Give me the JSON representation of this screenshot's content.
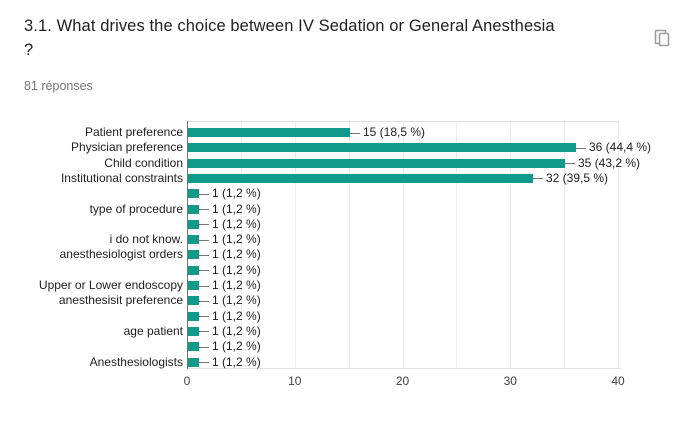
{
  "header": {
    "title_lines": [
      "3.1. What drives the choice between IV Sedation or General Anesthesia",
      "?"
    ],
    "responses_count": "81 réponses"
  },
  "icons": {
    "copy": "content-copy-icon"
  },
  "colors": {
    "bar": "#0f9a8a",
    "axis_line": "#757575",
    "leader_line": "#757575",
    "gridline": "#ececec",
    "plot_border": "#e0e0e0",
    "chart_label": "#212121",
    "tick_label": "#424242",
    "title": "#212121",
    "subtitle": "#757575",
    "icon": "#9e9e9e"
  },
  "chart_data": {
    "type": "bar",
    "orientation": "horizontal",
    "title": "",
    "xlabel": "",
    "ylabel": "",
    "xlim": [
      0,
      40
    ],
    "x_ticks": [
      0,
      10,
      20,
      30,
      40
    ],
    "gridline_step": 5,
    "grid": true,
    "legend": "none",
    "categories": [
      "Patient preference",
      "Physician preference",
      "Child condition",
      "Institutional constraints",
      "",
      "type of procedure",
      "",
      "i do not know.",
      "anesthesiologist orders",
      "",
      "Upper or Lower endoscopy",
      "anesthesisit preference",
      "",
      "age patient",
      "",
      "Anesthesiologists"
    ],
    "values": [
      15,
      36,
      35,
      32,
      1,
      1,
      1,
      1,
      1,
      1,
      1,
      1,
      1,
      1,
      1,
      1
    ],
    "value_labels": [
      "15 (18,5 %)",
      "36 (44,4 %)",
      "35 (43,2 %)",
      "32 (39,5 %)",
      "1 (1,2 %)",
      "1 (1,2 %)",
      "1 (1,2 %)",
      "1 (1,2 %)",
      "1 (1,2 %)",
      "1 (1,2 %)",
      "1 (1,2 %)",
      "1 (1,2 %)",
      "1 (1,2 %)",
      "1 (1,2 %)",
      "1 (1,2 %)",
      "1 (1,2 %)"
    ]
  }
}
